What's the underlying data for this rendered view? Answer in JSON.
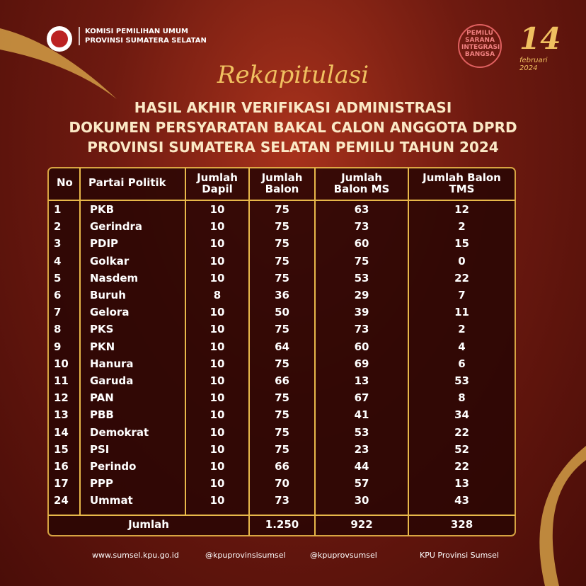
{
  "header": {
    "org_line1": "KOMISI PEMILIHAN UMUM",
    "org_line2": "PROVINSI SUMATERA SELATAN",
    "badge": "PEMILU SARANA INTEGRASI BANGSA",
    "date_day": "14",
    "date_rest": "februari 2024"
  },
  "title": {
    "script": "Rekapitulasi",
    "line1": "HASIL AKHIR VERIFIKASI ADMINISTRASI",
    "line2": "DOKUMEN PERSYARATAN BAKAL CALON ANGGOTA DPRD",
    "line3": "PROVINSI SUMATERA SELATAN PEMILU TAHUN 2024"
  },
  "table": {
    "headers": [
      "No",
      "Partai Politik",
      "Jumlah Dapil",
      "Jumlah Balon",
      "Jumlah Balon MS",
      "Jumlah Balon TMS"
    ],
    "rows": [
      [
        "1",
        "PKB",
        "10",
        "75",
        "63",
        "12"
      ],
      [
        "2",
        "Gerindra",
        "10",
        "75",
        "73",
        "2"
      ],
      [
        "3",
        "PDIP",
        "10",
        "75",
        "60",
        "15"
      ],
      [
        "4",
        "Golkar",
        "10",
        "75",
        "75",
        "0"
      ],
      [
        "5",
        "Nasdem",
        "10",
        "75",
        "53",
        "22"
      ],
      [
        "6",
        "Buruh",
        "8",
        "36",
        "29",
        "7"
      ],
      [
        "7",
        "Gelora",
        "10",
        "50",
        "39",
        "11"
      ],
      [
        "8",
        "PKS",
        "10",
        "75",
        "73",
        "2"
      ],
      [
        "9",
        "PKN",
        "10",
        "64",
        "60",
        "4"
      ],
      [
        "10",
        "Hanura",
        "10",
        "75",
        "69",
        "6"
      ],
      [
        "11",
        "Garuda",
        "10",
        "66",
        "13",
        "53"
      ],
      [
        "12",
        "PAN",
        "10",
        "75",
        "67",
        "8"
      ],
      [
        "13",
        "PBB",
        "10",
        "75",
        "41",
        "34"
      ],
      [
        "14",
        "Demokrat",
        "10",
        "75",
        "53",
        "22"
      ],
      [
        "15",
        "PSI",
        "10",
        "75",
        "23",
        "52"
      ],
      [
        "16",
        "Perindo",
        "10",
        "66",
        "44",
        "22"
      ],
      [
        "17",
        "PPP",
        "10",
        "70",
        "57",
        "13"
      ],
      [
        "24",
        "Ummat",
        "10",
        "73",
        "30",
        "43"
      ]
    ],
    "total": [
      "Jumlah",
      "1.250",
      "922",
      "328"
    ]
  },
  "footer": [
    "www.sumsel.kpu.go.id",
    "@kpuprovinsisumsel",
    "@kpuprovsumsel",
    "KPU Provinsi Sumsel"
  ]
}
